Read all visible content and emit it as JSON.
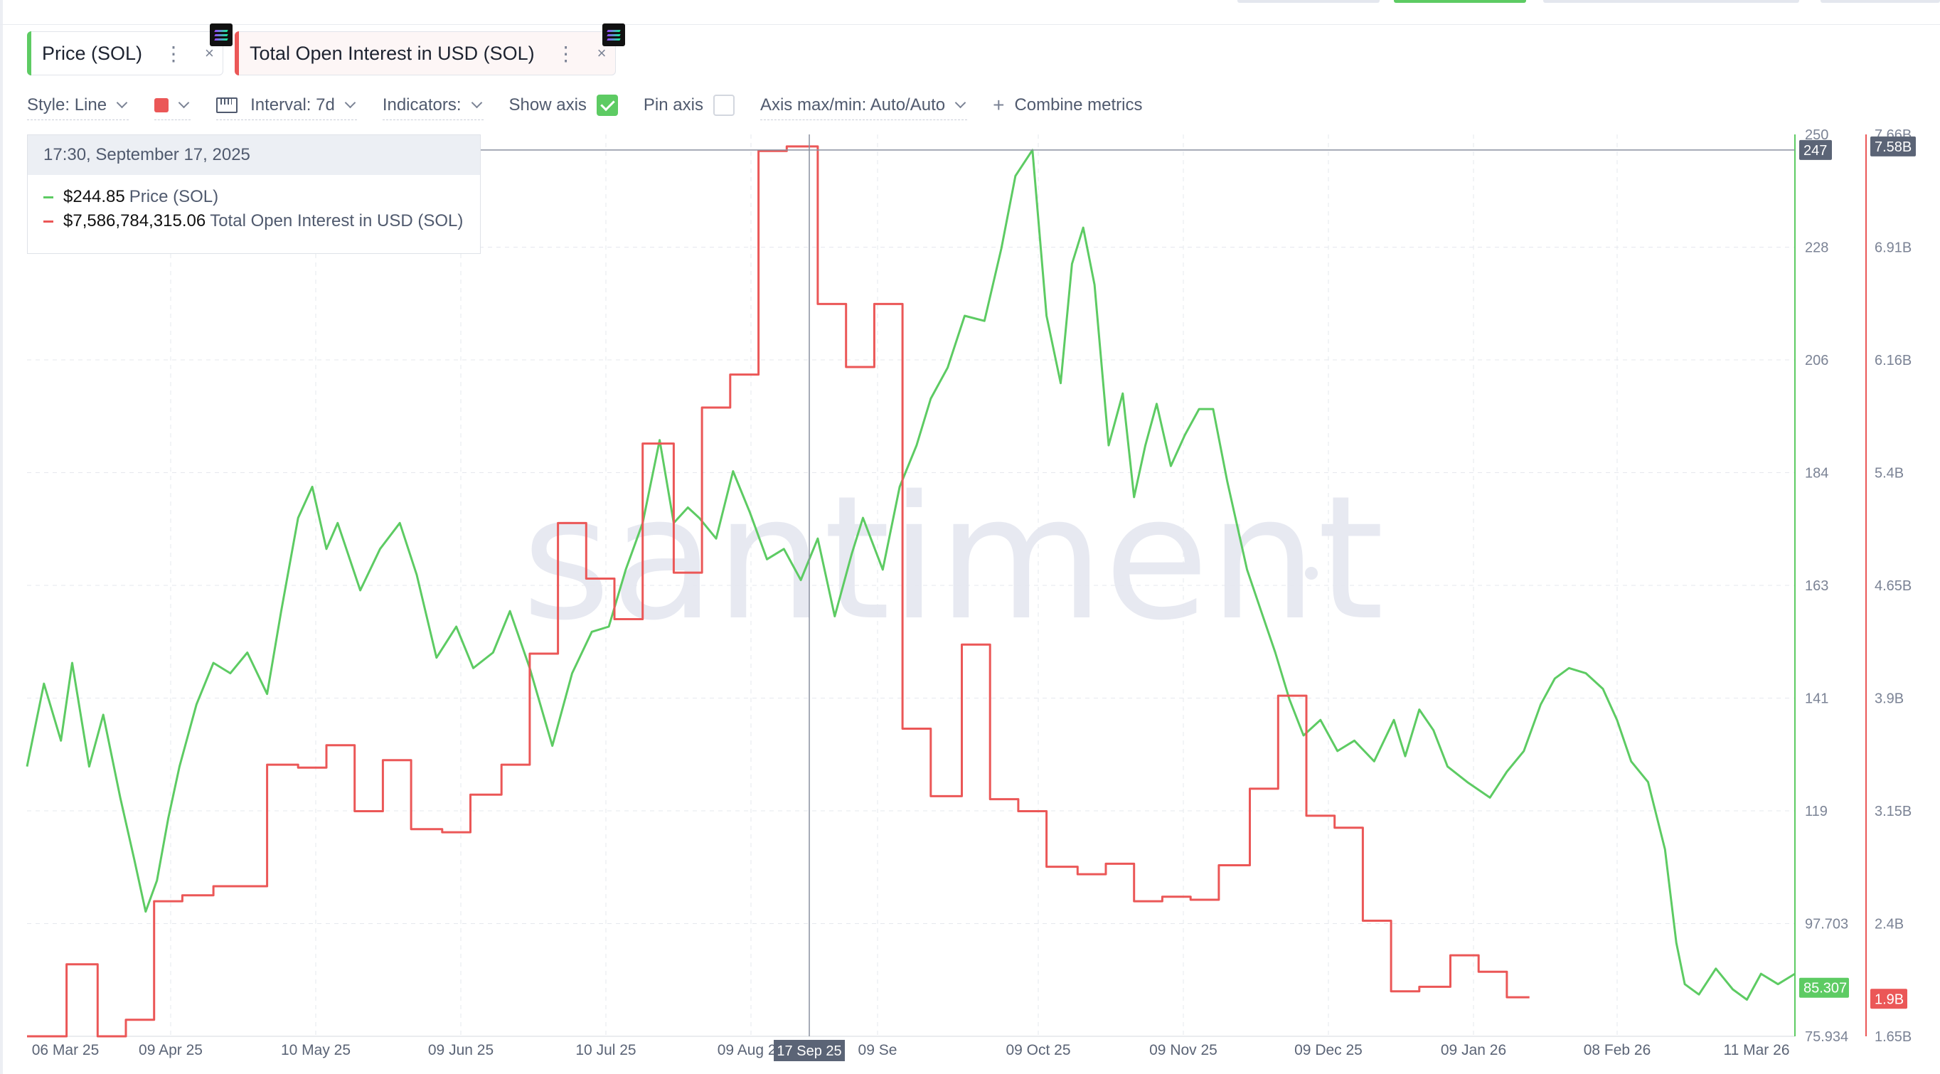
{
  "tabs": [
    {
      "label": "Price (SOL)",
      "color": "#5dcb63",
      "menu": "⋮",
      "close": "×"
    },
    {
      "label": "Total Open Interest in USD (SOL)",
      "color": "#eb5757",
      "menu": "⋮",
      "close": "×"
    }
  ],
  "toolbar": {
    "style": "Style: Line",
    "interval": "Interval: 7d",
    "indicators": "Indicators:",
    "show_axis": "Show axis",
    "pin_axis": "Pin axis",
    "axis_maxmin": "Axis max/min: Auto/Auto",
    "combine": "Combine metrics",
    "plus": "+"
  },
  "tooltip": {
    "date": "17:30, September 17, 2025",
    "rows": [
      {
        "value": "$244.85",
        "name": "Price (SOL)"
      },
      {
        "value": "$7,586,784,315.06",
        "name": "Total Open Interest in USD (SOL)"
      }
    ]
  },
  "watermark": "santiment",
  "chart_data": {
    "type": "line",
    "x_ticks": [
      "06 Mar 25",
      "09 Apr 25",
      "10 May 25",
      "09 Jun 25",
      "10 Jul 25",
      "09 Aug 25",
      "09 Se",
      "09 Oct 25",
      "09 Nov 25",
      "09 Dec 25",
      "09 Jan 26",
      "08 Feb 26",
      "11 Mar 26"
    ],
    "cursor_label": "17 Sep 25",
    "price_axis": {
      "ticks": [
        "250",
        "228",
        "206",
        "184",
        "163",
        "141",
        "119",
        "97.703",
        "75.934"
      ],
      "min": 75.934,
      "max": 250
    },
    "oi_axis": {
      "ticks": [
        "7.66B",
        "6.91B",
        "6.16B",
        "5.4B",
        "4.65B",
        "3.9B",
        "3.15B",
        "2.4B",
        "1.65B"
      ],
      "min": 1.65,
      "max": 7.66
    },
    "badges": {
      "price_cursor": "247",
      "oi_cursor": "7.58B",
      "price_last": "85.307",
      "oi_last": "1.9B"
    },
    "series": [
      {
        "name": "Price (SOL)",
        "color": "#5dcb63",
        "values": [
          [
            0,
            128
          ],
          [
            6,
            144
          ],
          [
            12,
            133
          ],
          [
            16,
            148
          ],
          [
            22,
            128
          ],
          [
            27,
            138
          ],
          [
            33,
            122
          ],
          [
            38,
            110
          ],
          [
            42,
            100
          ],
          [
            46,
            106
          ],
          [
            50,
            118
          ],
          [
            54,
            128
          ],
          [
            60,
            140
          ],
          [
            66,
            148
          ],
          [
            72,
            146
          ],
          [
            78,
            150
          ],
          [
            85,
            142
          ],
          [
            90,
            158
          ],
          [
            96,
            176
          ],
          [
            101,
            182
          ],
          [
            106,
            170
          ],
          [
            110,
            175
          ],
          [
            118,
            162
          ],
          [
            125,
            170
          ],
          [
            132,
            175
          ],
          [
            138,
            165
          ],
          [
            145,
            149
          ],
          [
            152,
            155
          ],
          [
            158,
            147
          ],
          [
            165,
            150
          ],
          [
            171,
            158
          ],
          [
            178,
            147
          ],
          [
            186,
            132
          ],
          [
            193,
            146
          ],
          [
            200,
            154
          ],
          [
            206,
            155
          ],
          [
            212,
            166
          ],
          [
            218,
            175
          ],
          [
            224,
            191
          ],
          [
            229,
            175
          ],
          [
            234,
            178
          ],
          [
            238,
            176
          ],
          [
            244,
            172
          ],
          [
            250,
            185
          ],
          [
            256,
            177
          ],
          [
            262,
            168
          ],
          [
            268,
            170
          ],
          [
            274,
            164
          ],
          [
            280,
            172
          ],
          [
            286,
            157
          ],
          [
            292,
            169
          ],
          [
            296,
            176
          ],
          [
            303,
            166
          ],
          [
            309,
            182
          ],
          [
            315,
            190
          ],
          [
            320,
            199
          ],
          [
            326,
            205
          ],
          [
            332,
            215
          ],
          [
            339,
            214
          ],
          [
            345,
            228
          ],
          [
            350,
            242
          ],
          [
            356,
            247
          ],
          [
            361,
            215
          ],
          [
            366,
            202
          ],
          [
            370,
            225
          ],
          [
            374,
            232
          ],
          [
            378,
            221
          ],
          [
            383,
            190
          ],
          [
            388,
            200
          ],
          [
            392,
            180
          ],
          [
            396,
            190
          ],
          [
            400,
            198
          ],
          [
            405,
            186
          ],
          [
            410,
            192
          ],
          [
            415,
            197
          ],
          [
            420,
            197
          ],
          [
            425,
            183
          ],
          [
            432,
            166
          ],
          [
            437,
            158
          ],
          [
            442,
            150
          ],
          [
            447,
            141
          ],
          [
            452,
            134
          ],
          [
            458,
            137
          ],
          [
            464,
            131
          ],
          [
            470,
            133
          ],
          [
            477,
            129
          ],
          [
            484,
            137
          ],
          [
            488,
            130
          ],
          [
            493,
            139
          ],
          [
            498,
            135
          ],
          [
            503,
            128
          ],
          [
            510,
            125
          ],
          [
            518,
            122
          ],
          [
            524,
            127
          ],
          [
            530,
            131
          ],
          [
            536,
            140
          ],
          [
            541,
            145
          ],
          [
            546,
            147
          ],
          [
            552,
            146
          ],
          [
            558,
            143
          ],
          [
            563,
            137
          ],
          [
            568,
            129
          ],
          [
            574,
            125
          ],
          [
            580,
            112
          ],
          [
            584,
            94
          ],
          [
            587,
            86
          ],
          [
            592,
            84
          ],
          [
            598,
            89
          ],
          [
            604,
            85
          ],
          [
            609,
            83
          ],
          [
            614,
            88
          ],
          [
            620,
            86
          ],
          [
            626,
            88
          ]
        ]
      },
      {
        "name": "Total Open Interest in USD (SOL)",
        "color": "#eb5757",
        "values": [
          [
            0,
            1.65
          ],
          [
            14,
            1.65
          ],
          [
            14,
            2.13
          ],
          [
            25,
            2.13
          ],
          [
            25,
            1.65
          ],
          [
            35,
            1.65
          ],
          [
            35,
            1.76
          ],
          [
            45,
            1.76
          ],
          [
            45,
            2.55
          ],
          [
            55,
            2.55
          ],
          [
            55,
            2.59
          ],
          [
            66,
            2.59
          ],
          [
            66,
            2.65
          ],
          [
            85,
            2.65
          ],
          [
            85,
            3.46
          ],
          [
            96,
            3.46
          ],
          [
            96,
            3.44
          ],
          [
            106,
            3.44
          ],
          [
            106,
            3.59
          ],
          [
            116,
            3.59
          ],
          [
            116,
            3.15
          ],
          [
            126,
            3.15
          ],
          [
            126,
            3.49
          ],
          [
            136,
            3.49
          ],
          [
            136,
            3.03
          ],
          [
            147,
            3.03
          ],
          [
            147,
            3.01
          ],
          [
            157,
            3.01
          ],
          [
            157,
            3.26
          ],
          [
            168,
            3.26
          ],
          [
            168,
            3.46
          ],
          [
            178,
            3.46
          ],
          [
            178,
            4.2
          ],
          [
            188,
            4.2
          ],
          [
            188,
            5.07
          ],
          [
            198,
            5.07
          ],
          [
            198,
            4.7
          ],
          [
            208,
            4.7
          ],
          [
            208,
            4.43
          ],
          [
            218,
            4.43
          ],
          [
            218,
            5.6
          ],
          [
            229,
            5.6
          ],
          [
            229,
            4.74
          ],
          [
            239,
            4.74
          ],
          [
            239,
            5.84
          ],
          [
            249,
            5.84
          ],
          [
            249,
            6.06
          ],
          [
            259,
            6.06
          ],
          [
            259,
            7.55
          ],
          [
            269,
            7.55
          ],
          [
            269,
            7.58
          ],
          [
            280,
            7.58
          ],
          [
            280,
            6.53
          ],
          [
            290,
            6.53
          ],
          [
            290,
            6.11
          ],
          [
            300,
            6.11
          ],
          [
            300,
            6.53
          ],
          [
            310,
            6.53
          ],
          [
            310,
            3.7
          ],
          [
            320,
            3.7
          ],
          [
            320,
            3.25
          ],
          [
            331,
            3.25
          ],
          [
            331,
            4.26
          ],
          [
            341,
            4.26
          ],
          [
            341,
            3.23
          ],
          [
            351,
            3.23
          ],
          [
            351,
            3.15
          ],
          [
            361,
            3.15
          ],
          [
            361,
            2.78
          ],
          [
            372,
            2.78
          ],
          [
            372,
            2.73
          ],
          [
            382,
            2.73
          ],
          [
            382,
            2.8
          ],
          [
            392,
            2.8
          ],
          [
            392,
            2.55
          ],
          [
            402,
            2.55
          ],
          [
            402,
            2.58
          ],
          [
            412,
            2.58
          ],
          [
            412,
            2.56
          ],
          [
            422,
            2.56
          ],
          [
            422,
            2.79
          ],
          [
            433,
            2.79
          ],
          [
            433,
            3.3
          ],
          [
            443,
            3.3
          ],
          [
            443,
            3.92
          ],
          [
            453,
            3.92
          ],
          [
            453,
            3.12
          ],
          [
            463,
            3.12
          ],
          [
            463,
            3.04
          ],
          [
            473,
            3.04
          ],
          [
            473,
            2.42
          ],
          [
            483,
            2.42
          ],
          [
            483,
            1.95
          ],
          [
            493,
            1.95
          ],
          [
            493,
            1.98
          ],
          [
            504,
            1.98
          ],
          [
            504,
            2.19
          ],
          [
            514,
            2.19
          ],
          [
            514,
            2.08
          ],
          [
            524,
            2.08
          ],
          [
            524,
            1.91
          ],
          [
            532,
            1.91
          ]
        ]
      }
    ]
  }
}
